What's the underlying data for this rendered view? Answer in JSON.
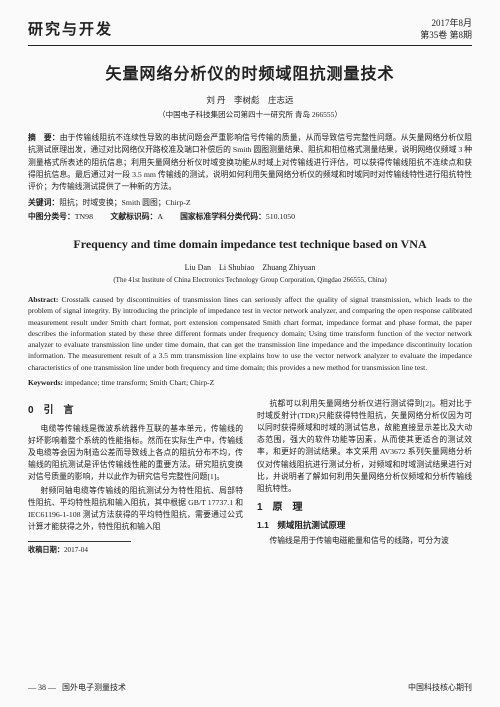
{
  "header": {
    "left": "研究与开发",
    "date": "2017年8月",
    "issue": "第35卷 第8期"
  },
  "title_cn": "矢量网络分析仪的时频域阻抗测量技术",
  "authors_cn": "刘 丹　李树彪　庄志远",
  "affil_cn": "（中国电子科技集团公司第四十一研究所 青岛 266555）",
  "abstract_cn_label": "摘　要：",
  "abstract_cn": "由于传输线阻抗不连续性导致的串扰问题会严重影响信号传输的质量，从而导致信号完整性问题。从矢量网络分析仪阻抗测试原理出发，通过对比网络仪开路校准及端口补偿后的 Smith 圆图测量结果、阻抗和相位格式测量结果，说明网络仪频域 3 种测量格式所表述的阻抗信息；利用矢量网络分析仪时域变换功能从时域上对传输线进行评估，可以获得传输线阻抗不连续点和获得阻抗信息。最后通过对一段 3.5 mm 传输线的测试，说明如何利用矢量网络分析仪的频域和时域同时对传输线特性进行阻抗特性评价；为传输线测试提供了一种新的方法。",
  "keywords_cn_label": "关键词：",
  "keywords_cn": "阻抗；时域变换；Smith 圆图；Chirp-Z",
  "class_cn_label1": "中图分类号：",
  "class_cn_val1": "TN98",
  "class_cn_label2": "文献标识码：",
  "class_cn_val2": "A",
  "class_cn_label3": "国家标准学科分类代码：",
  "class_cn_val3": "510.1050",
  "title_en": "Frequency and time domain impedance test technique based on VNA",
  "authors_en": "Liu Dan　Li Shubiao　Zhuang Zhiyuan",
  "affil_en": "(The 41st Institute of China Electronics Technology Group Corporation, Qingdao 266555, China)",
  "abstract_en_label": "Abstract:",
  "abstract_en": " Crosstalk caused by discontinuities of transmission lines can seriously affect the quality of signal transmission, which leads to the problem of signal integrity. By introducing the principle of impedance test in vector network analyzer, and comparing the open response calibrated measurement result under Smith chart format, port extension compensated Smith chart format, impedance format and phase format, the paper describes the information stated by these three different formats under frequency domain; Using time transform function of the vector network analyzer to evaluate transmission line under time domain, that can get the transmission line impedance and the impedance discontinuity location information. The measurement result of a 3.5 mm transmission line explains how to use the vector network analyzer to evaluate the impedance characteristics of one transmission line under both frequency and time domain; this provides a new method for transmission line test.",
  "keywords_en_label": "Keywords:",
  "keywords_en": " impedance; time transform; Smith Chart; Chirp-Z",
  "sec0_head": "0　引　言",
  "sec0_p1": "电缆等传输线是微波系统器件互联的基本单元，传输线的好坏影响着整个系统的性能指标。然而在实际生产中，传输线及电缆等会因为制造公差而导致线上各点的阻抗分布不均，传输线的阻抗测试是评估传输线性能的重要方法。研究阻抗变换对信号质量的影响，并以此作为研究信号完整性问题[1]。",
  "sec0_p2": "射频同轴电缆等传输线的阻抗测试分为特性阻抗、局部特性阻抗、平均特性阻抗和输入阻抗，其中根据 GB/T 17737.1 和 IEC61196-1-108 测试方法获得的平均特性阻抗，需要通过公式计算才能获得之外，特性阻抗和输入阻",
  "sec0_p3": "抗都可以利用矢量网络分析仪进行测试得到[2]。相对比于时域反射计(TDR)只能获得特性阻抗，矢量网络分析仪因为可以同时获得频域和时域的测试信息，故能直接显示差比及大动态范围，强大的软件功能等因素，从而使其更适合的测试效率，和更好的测试结果。本文采用 AV3672 系列矢量网络分析仪对传输线阻抗进行测试分析，对频域和时域测试结果进行对比，并说明者了解如何利用矢量网络分析仪频域和分析传输线阻抗特性。",
  "sec1_head": "1　原　理",
  "sec1_1_head": "1.1　频域阻抗测试原理",
  "sec1_1_p1": "传输线是用于传输电磁能量和信号的线路，可分为波",
  "recv_date_label": "收稿日期：",
  "recv_date": "2017-04",
  "footer": {
    "page_num": "— 38 —",
    "journal": "国外电子测量技术",
    "right": "中国科技核心期刊"
  }
}
